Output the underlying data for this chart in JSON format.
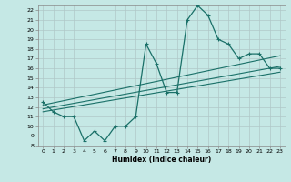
{
  "xlabel": "Humidex (Indice chaleur)",
  "bg_color": "#c5e8e5",
  "grid_color": "#b0c8c8",
  "line_color": "#1a7068",
  "xlim": [
    -0.5,
    23.5
  ],
  "ylim": [
    8,
    22.5
  ],
  "yticks": [
    8,
    9,
    10,
    11,
    12,
    13,
    14,
    15,
    16,
    17,
    18,
    19,
    20,
    21,
    22
  ],
  "xticks": [
    0,
    1,
    2,
    3,
    4,
    5,
    6,
    7,
    8,
    9,
    10,
    11,
    12,
    13,
    14,
    15,
    16,
    17,
    18,
    19,
    20,
    21,
    22,
    23
  ],
  "main_x": [
    0,
    1,
    2,
    3,
    4,
    5,
    6,
    7,
    8,
    9,
    10,
    11,
    12,
    13,
    14,
    15,
    16,
    17,
    18,
    19,
    20,
    21,
    22,
    23
  ],
  "main_y": [
    12.5,
    11.5,
    11.0,
    11.0,
    8.5,
    9.5,
    8.5,
    10.0,
    10.0,
    11.0,
    18.5,
    16.5,
    13.5,
    13.5,
    21.0,
    22.5,
    21.5,
    19.0,
    18.5,
    17.0,
    17.5,
    17.5,
    16.0,
    16.0
  ],
  "trend1_x": [
    0,
    23
  ],
  "trend1_y": [
    12.2,
    17.3
  ],
  "trend2_x": [
    0,
    23
  ],
  "trend2_y": [
    11.8,
    16.2
  ],
  "trend3_x": [
    0,
    23
  ],
  "trend3_y": [
    11.5,
    15.6
  ]
}
